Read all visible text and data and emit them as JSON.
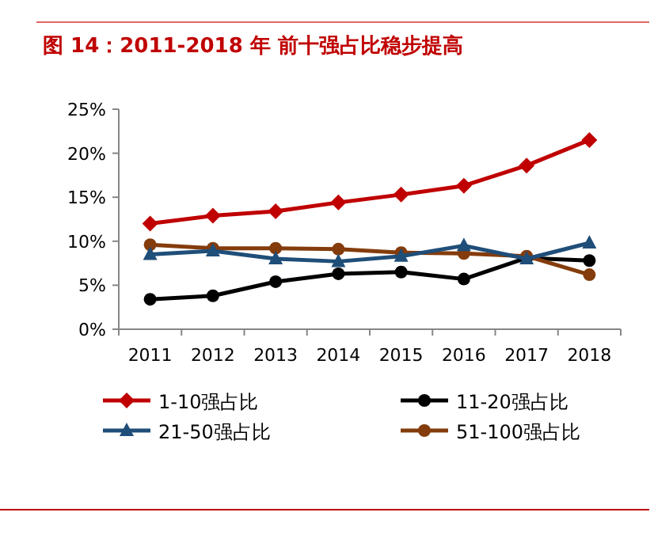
{
  "chart_data": {
    "type": "line",
    "title": "图 14：2011-2018 年  前十强占比稳步提高",
    "categories": [
      "2011",
      "2012",
      "2013",
      "2014",
      "2015",
      "2016",
      "2017",
      "2018"
    ],
    "ylim": [
      0,
      25
    ],
    "yticks": [
      {
        "value": 0,
        "label": "0%"
      },
      {
        "value": 5,
        "label": "5%"
      },
      {
        "value": 10,
        "label": "10%"
      },
      {
        "value": 15,
        "label": "15%"
      },
      {
        "value": 20,
        "label": "20%"
      },
      {
        "value": 25,
        "label": "25%"
      }
    ],
    "grid": false,
    "legend": "bottom",
    "line_style": "solid",
    "series": [
      {
        "name": "1-10强占比",
        "color": "#c00000",
        "marker": "diamond",
        "values": [
          12.0,
          12.9,
          13.4,
          14.4,
          15.3,
          16.3,
          18.6,
          21.5
        ]
      },
      {
        "name": "11-20强占比",
        "color": "#000000",
        "marker": "circle",
        "values": [
          3.4,
          3.8,
          5.4,
          6.3,
          6.5,
          5.7,
          8.1,
          7.8
        ]
      },
      {
        "name": "21-50强占比",
        "color": "#1f4e79",
        "marker": "triangle",
        "values": [
          8.5,
          8.9,
          8.0,
          7.7,
          8.3,
          9.5,
          8.0,
          9.8
        ]
      },
      {
        "name": "51-100强占比",
        "color": "#843c0c",
        "marker": "circle",
        "values": [
          9.6,
          9.2,
          9.2,
          9.1,
          8.7,
          8.6,
          8.3,
          6.2
        ]
      }
    ]
  }
}
